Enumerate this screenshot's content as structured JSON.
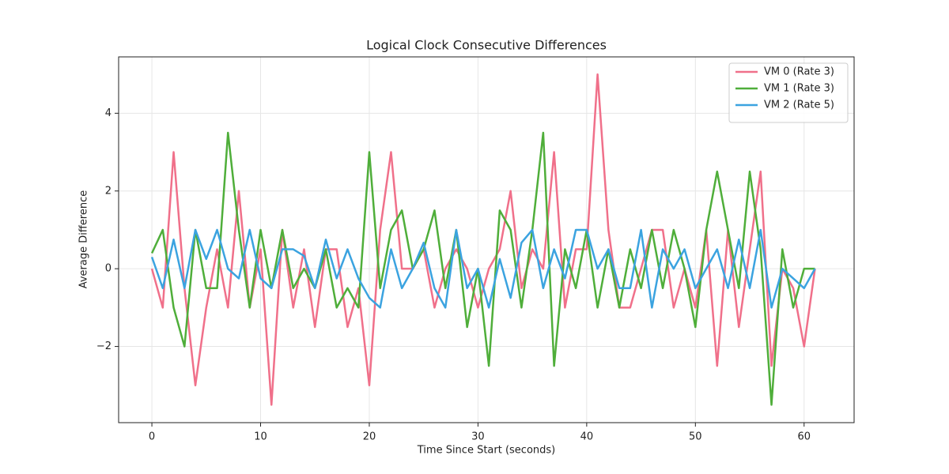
{
  "chart_data": {
    "type": "line",
    "title": "Logical Clock Consecutive Differences",
    "x_label": "Time Since Start (seconds)",
    "y_label": "Average Difference",
    "x": [
      0,
      1,
      2,
      3,
      4,
      5,
      6,
      7,
      8,
      9,
      10,
      11,
      12,
      13,
      14,
      15,
      16,
      17,
      18,
      19,
      20,
      21,
      22,
      23,
      24,
      25,
      26,
      27,
      28,
      29,
      30,
      31,
      32,
      33,
      34,
      35,
      36,
      37,
      38,
      39,
      40,
      41,
      42,
      43,
      44,
      45,
      46,
      47,
      48,
      49,
      50,
      51,
      52,
      53,
      54,
      55,
      56,
      57,
      58,
      59,
      60,
      61
    ],
    "series": [
      {
        "name": "VM 0 (Rate 3)",
        "color": "#f0708a",
        "values": [
          0,
          -1,
          3,
          -0.5,
          -3,
          -1,
          0.5,
          -1,
          2,
          -1,
          0.5,
          -3.5,
          1,
          -1,
          0.5,
          -1.5,
          0.5,
          0.5,
          -1.5,
          -0.5,
          -3,
          1,
          3,
          0,
          0,
          0.5,
          -1,
          0,
          0.5,
          0,
          -1,
          0,
          0.5,
          2,
          -0.5,
          0.5,
          0,
          3,
          -1,
          0.5,
          0.5,
          5,
          1,
          -1,
          -1,
          0,
          1,
          1,
          -1,
          0,
          -1,
          1,
          -2.5,
          1,
          -1.5,
          0.5,
          2.5,
          -2.5,
          0,
          -0.5,
          -2,
          0
        ]
      },
      {
        "name": "VM 1 (Rate 3)",
        "color": "#4fae3a",
        "values": [
          0.4,
          1,
          -1,
          -2,
          1,
          -0.5,
          -0.5,
          3.5,
          1,
          -1,
          1,
          -0.5,
          1,
          -0.5,
          0,
          -0.5,
          0.5,
          -1,
          -0.5,
          -1,
          3,
          -0.5,
          1,
          1.5,
          0,
          0.5,
          1.5,
          -0.5,
          1,
          -1.5,
          0,
          -2.5,
          1.5,
          1,
          -1,
          1,
          3.5,
          -2.5,
          0.5,
          -0.5,
          1,
          -1,
          0.5,
          -1,
          0.5,
          -0.5,
          1,
          -0.5,
          1,
          0,
          -1.5,
          1,
          2.5,
          1,
          -0.5,
          2.5,
          0.5,
          -3.5,
          0.5,
          -1,
          0,
          0
        ]
      },
      {
        "name": "VM 2 (Rate 5)",
        "color": "#3ba3e0",
        "values": [
          0.3,
          -0.5,
          0.75,
          -0.5,
          1,
          0.25,
          1,
          0,
          -0.25,
          1,
          -0.25,
          -0.5,
          0.5,
          0.5,
          0.33,
          -0.5,
          0.75,
          -0.25,
          0.5,
          -0.25,
          -0.75,
          -1,
          0.5,
          -0.5,
          0,
          0.67,
          -0.5,
          -1,
          1,
          -0.5,
          0,
          -1,
          0.25,
          -0.75,
          0.67,
          1,
          -0.5,
          0.5,
          -0.25,
          1,
          1,
          0,
          0.5,
          -0.5,
          -0.5,
          1,
          -1,
          0.5,
          0,
          0.5,
          -0.5,
          0,
          0.5,
          -0.5,
          0.75,
          -0.5,
          1,
          -1,
          0,
          -0.25,
          -0.5,
          0
        ]
      }
    ],
    "xlim": [
      -3.06,
      64.6
    ],
    "ylim": [
      -3.96,
      5.45
    ],
    "xticks": [
      0,
      10,
      20,
      30,
      40,
      50,
      60
    ],
    "yticks": [
      4,
      2,
      0,
      {
        "value": -2,
        "label": "−2"
      }
    ],
    "grid": true,
    "legend": "upper right"
  }
}
